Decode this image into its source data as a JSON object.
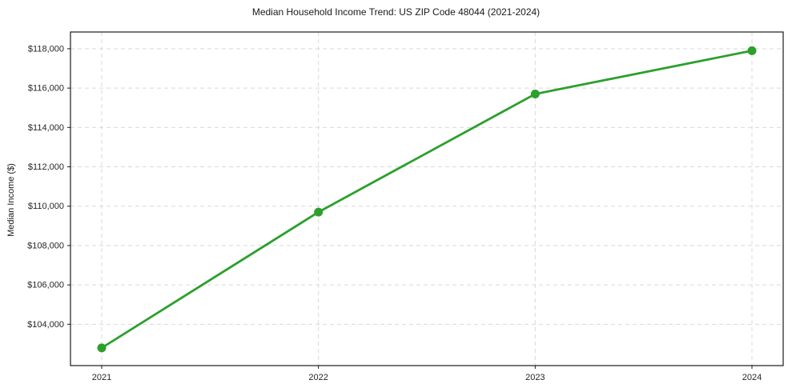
{
  "figure": {
    "background": "#ffffff"
  },
  "chart_data": {
    "type": "line",
    "title": "Median Household Income Trend: US ZIP Code 48044 (2021-2024)",
    "xlabel": "",
    "ylabel": "Median Income ($)",
    "categories": [
      "2021",
      "2022",
      "2023",
      "2024"
    ],
    "values": [
      102800,
      109700,
      115700,
      117900
    ],
    "yticks": [
      104000,
      106000,
      108000,
      110000,
      112000,
      114000,
      116000,
      118000
    ],
    "ytick_labels": [
      "$104,000",
      "$106,000",
      "$108,000",
      "$110,000",
      "$112,000",
      "$114,000",
      "$116,000",
      "$118,000"
    ],
    "ylim": [
      101900,
      118850
    ],
    "grid": {
      "show": true,
      "style": "dashed",
      "color": "#d9d9d9"
    },
    "legend": "none",
    "line_color": "#2ca02c",
    "marker": "circle",
    "marker_radius": 5.5,
    "line_width": 2.8,
    "axis_color": "#1a1a1a",
    "tick_label_color": "#262626"
  }
}
